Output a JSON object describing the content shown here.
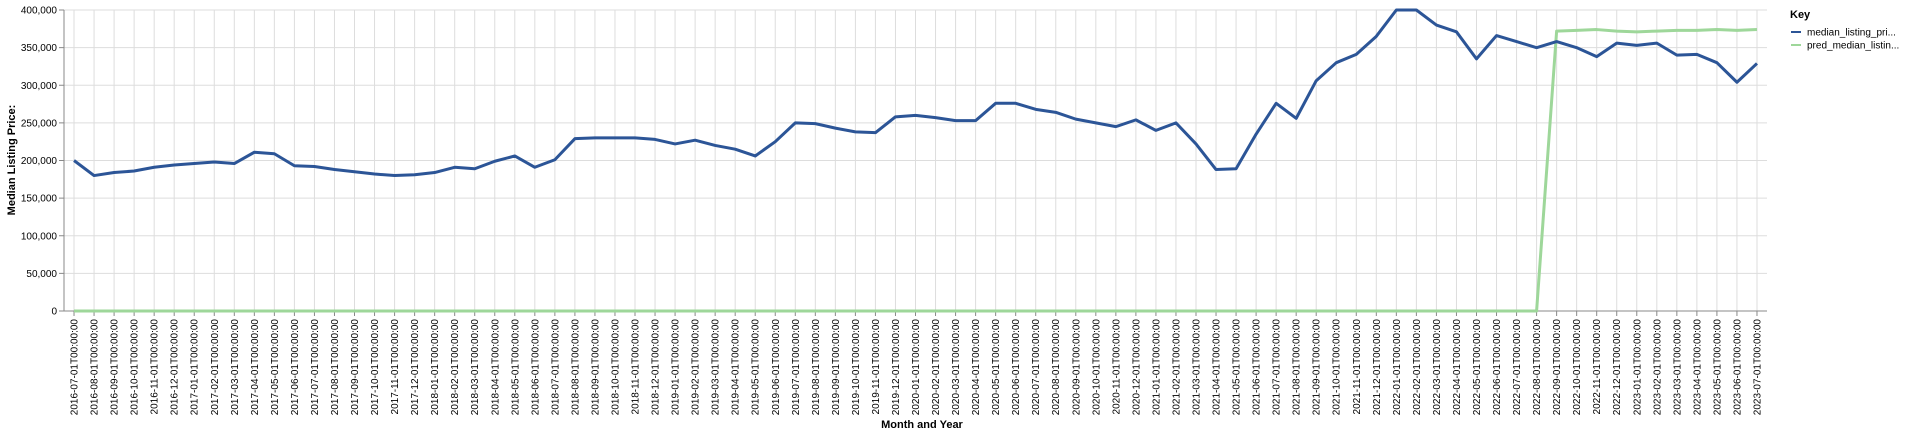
{
  "chart_data": {
    "type": "line",
    "xlabel": "Month and Year",
    "ylabel": "Median Listing Price:",
    "ylim": [
      0,
      400000
    ],
    "y_ticks": [
      "0",
      "50,000",
      "100,000",
      "150,000",
      "200,000",
      "250,000",
      "300,000",
      "350,000",
      "400,000"
    ],
    "y_tick_values": [
      0,
      50000,
      100000,
      150000,
      200000,
      250000,
      300000,
      350000,
      400000
    ],
    "grid": true,
    "legend_position": "right",
    "legend_title": "Key",
    "x": [
      "2016-07-01T00:00:00",
      "2016-08-01T00:00:00",
      "2016-09-01T00:00:00",
      "2016-10-01T00:00:00",
      "2016-11-01T00:00:00",
      "2016-12-01T00:00:00",
      "2017-01-01T00:00:00",
      "2017-02-01T00:00:00",
      "2017-03-01T00:00:00",
      "2017-04-01T00:00:00",
      "2017-05-01T00:00:00",
      "2017-06-01T00:00:00",
      "2017-07-01T00:00:00",
      "2017-08-01T00:00:00",
      "2017-09-01T00:00:00",
      "2017-10-01T00:00:00",
      "2017-11-01T00:00:00",
      "2017-12-01T00:00:00",
      "2018-01-01T00:00:00",
      "2018-02-01T00:00:00",
      "2018-03-01T00:00:00",
      "2018-04-01T00:00:00",
      "2018-05-01T00:00:00",
      "2018-06-01T00:00:00",
      "2018-07-01T00:00:00",
      "2018-08-01T00:00:00",
      "2018-09-01T00:00:00",
      "2018-10-01T00:00:00",
      "2018-11-01T00:00:00",
      "2018-12-01T00:00:00",
      "2019-01-01T00:00:00",
      "2019-02-01T00:00:00",
      "2019-03-01T00:00:00",
      "2019-04-01T00:00:00",
      "2019-05-01T00:00:00",
      "2019-06-01T00:00:00",
      "2019-07-01T00:00:00",
      "2019-08-01T00:00:00",
      "2019-09-01T00:00:00",
      "2019-10-01T00:00:00",
      "2019-11-01T00:00:00",
      "2019-12-01T00:00:00",
      "2020-01-01T00:00:00",
      "2020-02-01T00:00:00",
      "2020-03-01T00:00:00",
      "2020-04-01T00:00:00",
      "2020-05-01T00:00:00",
      "2020-06-01T00:00:00",
      "2020-07-01T00:00:00",
      "2020-08-01T00:00:00",
      "2020-09-01T00:00:00",
      "2020-10-01T00:00:00",
      "2020-11-01T00:00:00",
      "2020-12-01T00:00:00",
      "2021-01-01T00:00:00",
      "2021-02-01T00:00:00",
      "2021-03-01T00:00:00",
      "2021-04-01T00:00:00",
      "2021-05-01T00:00:00",
      "2021-06-01T00:00:00",
      "2021-07-01T00:00:00",
      "2021-08-01T00:00:00",
      "2021-09-01T00:00:00",
      "2021-10-01T00:00:00",
      "2021-11-01T00:00:00",
      "2021-12-01T00:00:00",
      "2022-01-01T00:00:00",
      "2022-02-01T00:00:00",
      "2022-03-01T00:00:00",
      "2022-04-01T00:00:00",
      "2022-05-01T00:00:00",
      "2022-06-01T00:00:00",
      "2022-07-01T00:00:00",
      "2022-08-01T00:00:00",
      "2022-09-01T00:00:00",
      "2022-10-01T00:00:00",
      "2022-11-01T00:00:00",
      "2022-12-01T00:00:00",
      "2023-01-01T00:00:00",
      "2023-02-01T00:00:00",
      "2023-03-01T00:00:00",
      "2023-04-01T00:00:00",
      "2023-05-01T00:00:00",
      "2023-06-01T00:00:00",
      "2023-07-01T00:00:00"
    ],
    "series": [
      {
        "name": "median_listing_pri...",
        "color": "#2c5597",
        "values": [
          200000,
          180000,
          184000,
          186000,
          191000,
          194000,
          196000,
          198000,
          196000,
          211000,
          209000,
          193000,
          192000,
          188000,
          185000,
          182000,
          180000,
          181000,
          184000,
          191000,
          189000,
          199000,
          206000,
          191000,
          201000,
          229000,
          230000,
          230000,
          230000,
          228000,
          222000,
          227000,
          220000,
          215000,
          206000,
          225000,
          250000,
          249000,
          243000,
          238000,
          237000,
          258000,
          260000,
          257000,
          253000,
          253000,
          276000,
          276000,
          268000,
          264000,
          255000,
          250000,
          245000,
          254000,
          240000,
          250000,
          222000,
          188000,
          189000,
          235000,
          276000,
          256000,
          306000,
          330000,
          341000,
          365000,
          400000,
          400000,
          380000,
          371000,
          335000,
          366000,
          358000,
          350000,
          358000,
          350000,
          338000,
          356000,
          353000,
          356000,
          340000,
          341000,
          330000,
          304000,
          329000
        ]
      },
      {
        "name": "pred_median_listin...",
        "color": "#9ed79a",
        "values": [
          0,
          0,
          0,
          0,
          0,
          0,
          0,
          0,
          0,
          0,
          0,
          0,
          0,
          0,
          0,
          0,
          0,
          0,
          0,
          0,
          0,
          0,
          0,
          0,
          0,
          0,
          0,
          0,
          0,
          0,
          0,
          0,
          0,
          0,
          0,
          0,
          0,
          0,
          0,
          0,
          0,
          0,
          0,
          0,
          0,
          0,
          0,
          0,
          0,
          0,
          0,
          0,
          0,
          0,
          0,
          0,
          0,
          0,
          0,
          0,
          0,
          0,
          0,
          0,
          0,
          0,
          0,
          0,
          0,
          0,
          0,
          0,
          0,
          0,
          372000,
          373000,
          374000,
          372000,
          371000,
          372000,
          373000,
          373000,
          374000,
          373000,
          374000
        ]
      }
    ]
  }
}
